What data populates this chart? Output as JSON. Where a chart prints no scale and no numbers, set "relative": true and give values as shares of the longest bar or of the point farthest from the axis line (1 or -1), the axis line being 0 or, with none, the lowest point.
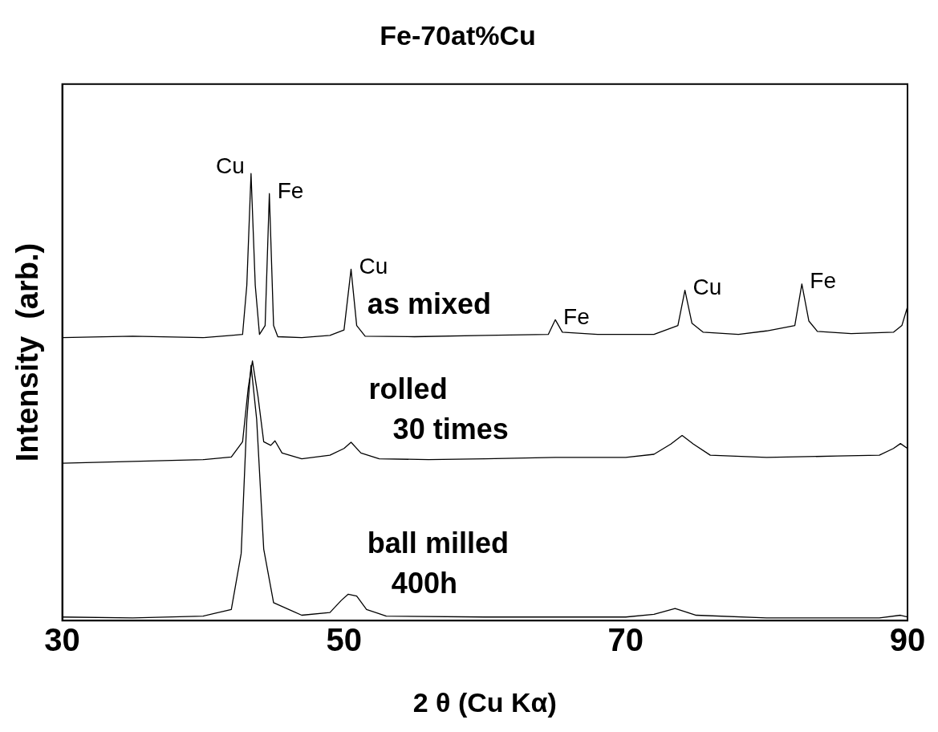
{
  "chart_data": {
    "type": "line",
    "title": "Fe-70at%Cu",
    "xlabel": "2 θ (Cu Kα)",
    "ylabel": "Intensity  (arb.)",
    "relative": true,
    "marker": "none",
    "xlim": [
      30,
      90
    ],
    "xticks": [
      30,
      50,
      70,
      90
    ],
    "series": [
      {
        "name": "as mixed",
        "color": "#000000",
        "x": [
          30,
          35,
          40,
          42,
          42.8,
          43.1,
          43.4,
          43.7,
          44.0,
          44.4,
          44.7,
          45.0,
          45.3,
          47,
          49,
          50.0,
          50.5,
          50.9,
          51.5,
          55,
          60,
          64.5,
          65.0,
          65.5,
          68,
          72,
          73.7,
          74.2,
          74.7,
          75.5,
          78,
          80,
          82.0,
          82.5,
          83.0,
          83.6,
          86,
          89,
          89.6,
          90
        ],
        "values": [
          0.633,
          0.636,
          0.633,
          0.638,
          0.64,
          0.75,
          1.0,
          0.75,
          0.64,
          0.66,
          0.955,
          0.66,
          0.635,
          0.633,
          0.638,
          0.65,
          0.786,
          0.66,
          0.636,
          0.635,
          0.638,
          0.64,
          0.673,
          0.645,
          0.64,
          0.64,
          0.66,
          0.739,
          0.665,
          0.645,
          0.64,
          0.648,
          0.66,
          0.753,
          0.67,
          0.647,
          0.642,
          0.645,
          0.66,
          0.702
        ]
      },
      {
        "name": "rolled\n30 times",
        "color": "#000000",
        "x": [
          30,
          35,
          40,
          42,
          42.8,
          43.2,
          43.5,
          43.9,
          44.3,
          44.8,
          45.1,
          45.6,
          47,
          49,
          50.0,
          50.5,
          51.2,
          52.5,
          56,
          60,
          65,
          70,
          72,
          73.2,
          74.0,
          74.8,
          76,
          80,
          85,
          88,
          89.0,
          89.5,
          90
        ],
        "values": [
          0.352,
          0.356,
          0.36,
          0.366,
          0.4,
          0.52,
          0.581,
          0.5,
          0.4,
          0.392,
          0.402,
          0.375,
          0.362,
          0.37,
          0.385,
          0.399,
          0.375,
          0.362,
          0.36,
          0.362,
          0.365,
          0.365,
          0.372,
          0.395,
          0.414,
          0.395,
          0.37,
          0.365,
          0.368,
          0.37,
          0.385,
          0.396,
          0.385
        ]
      },
      {
        "name": "ball milled\n400h",
        "color": "#000000",
        "x": [
          30,
          35,
          40,
          42,
          42.7,
          43.1,
          43.4,
          43.8,
          44.3,
          45,
          47,
          49,
          49.8,
          50.3,
          50.9,
          51.6,
          53,
          60,
          70,
          72,
          73.5,
          75,
          80,
          88,
          89.5,
          90
        ],
        "values": [
          0.008,
          0.006,
          0.01,
          0.025,
          0.15,
          0.45,
          0.571,
          0.45,
          0.16,
          0.04,
          0.012,
          0.018,
          0.045,
          0.059,
          0.055,
          0.025,
          0.01,
          0.008,
          0.008,
          0.014,
          0.027,
          0.012,
          0.006,
          0.006,
          0.012,
          0.008
        ]
      }
    ],
    "annotations": [
      {
        "text": "Cu",
        "x": 43.4,
        "y": 1.0
      },
      {
        "text": "Fe",
        "x": 44.7,
        "y": 0.955
      },
      {
        "text": "Cu",
        "x": 50.5,
        "y": 0.786
      },
      {
        "text": "Fe",
        "x": 65.0,
        "y": 0.673
      },
      {
        "text": "Cu",
        "x": 74.2,
        "y": 0.739
      },
      {
        "text": "Fe",
        "x": 82.5,
        "y": 0.753
      }
    ]
  }
}
